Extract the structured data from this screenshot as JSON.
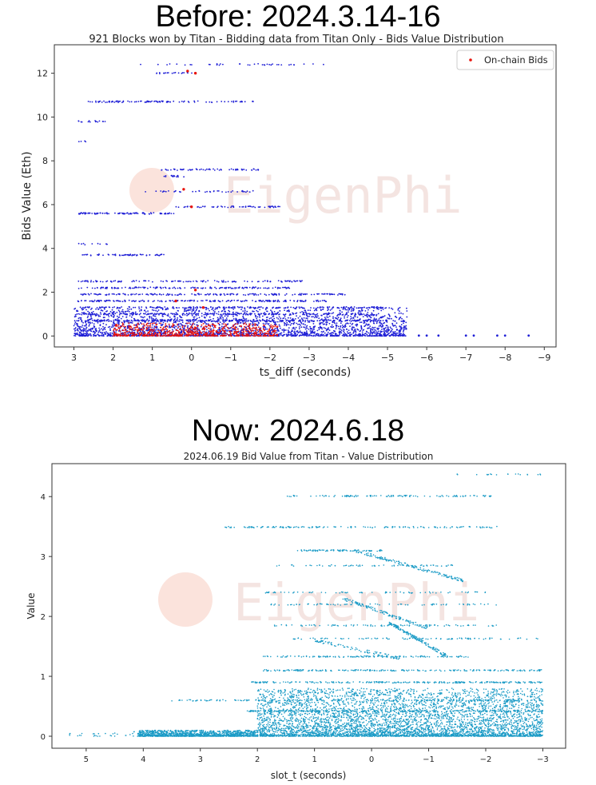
{
  "headers": {
    "before": "Before: 2024.3.14-16",
    "now": "Now: 2024.6.18"
  },
  "watermark": "EigenPhi",
  "chart_data": [
    {
      "type": "scatter",
      "title": "921 Blocks won by Titan - Bidding data from Titan Only - Bids Value Distribution",
      "xlabel": "ts_diff (seconds)",
      "ylabel": "Bids Value (Eth)",
      "xlim": [
        3.5,
        -9.3
      ],
      "ylim": [
        -0.5,
        13.3
      ],
      "x_inverted": true,
      "xticks": [
        3,
        2,
        1,
        0,
        -1,
        -2,
        -3,
        -4,
        -5,
        -6,
        -7,
        -8,
        -9
      ],
      "xtick_labels": [
        "3",
        "2",
        "1",
        "0",
        "−1",
        "−2",
        "−3",
        "−4",
        "−5",
        "−6",
        "−7",
        "−8",
        "−9"
      ],
      "yticks": [
        0,
        2,
        4,
        6,
        8,
        10,
        12
      ],
      "ytick_labels": [
        "0",
        "2",
        "4",
        "6",
        "8",
        "10",
        "12"
      ],
      "grid": false,
      "legend": "top-right",
      "series": [
        {
          "name": "",
          "color": "#1f1fd6",
          "bands": [
            {
              "y": 12.4,
              "x0": 1.4,
              "x1": -3.5,
              "n": 40
            },
            {
              "y": 12.0,
              "x0": 0.9,
              "x1": -0.1,
              "n": 20
            },
            {
              "y": 10.7,
              "x0": 2.7,
              "x1": 0.0,
              "n": 80
            },
            {
              "y": 10.7,
              "x0": 0.0,
              "x1": -1.6,
              "n": 25
            },
            {
              "y": 9.8,
              "x0": 2.9,
              "x1": 2.2,
              "n": 15
            },
            {
              "y": 8.9,
              "x0": 2.9,
              "x1": 2.6,
              "n": 4
            },
            {
              "y": 7.6,
              "x0": 0.8,
              "x1": -1.8,
              "n": 60
            },
            {
              "y": 7.3,
              "x0": 0.7,
              "x1": 0.1,
              "n": 15
            },
            {
              "y": 6.6,
              "x0": 1.2,
              "x1": -1.6,
              "n": 40
            },
            {
              "y": 5.9,
              "x0": 0.4,
              "x1": -2.3,
              "n": 60
            },
            {
              "y": 5.6,
              "x0": 2.9,
              "x1": 0.4,
              "n": 90
            },
            {
              "y": 3.7,
              "x0": 2.8,
              "x1": 0.7,
              "n": 60
            },
            {
              "y": 4.2,
              "x0": 2.9,
              "x1": 2.1,
              "n": 10
            },
            {
              "y": 2.5,
              "x0": 2.9,
              "x1": -3.0,
              "n": 120
            },
            {
              "y": 2.2,
              "x0": 2.9,
              "x1": -2.5,
              "n": 150
            },
            {
              "y": 1.9,
              "x0": 2.9,
              "x1": -4.0,
              "n": 180
            },
            {
              "y": 1.6,
              "x0": 2.9,
              "x1": -3.5,
              "n": 180
            },
            {
              "y": 1.3,
              "x0": 2.9,
              "x1": -5.0,
              "n": 200
            },
            {
              "y": 1.0,
              "x0": 2.9,
              "x1": -4.5,
              "n": 220
            },
            {
              "y": 0.7,
              "x0": 2.9,
              "x1": -5.0,
              "n": 260
            }
          ],
          "cloud": {
            "x0": 3.0,
            "x1": -5.5,
            "y0": 0.0,
            "y1": 1.3,
            "n": 2600
          },
          "outliers": [
            [
              -5.8,
              0.02
            ],
            [
              -6.3,
              0.02
            ],
            [
              -7.0,
              0.02
            ],
            [
              -7.8,
              0.02
            ],
            [
              -8.0,
              0.02
            ],
            [
              -8.6,
              0.02
            ],
            [
              -6.0,
              0.02
            ],
            [
              -7.2,
              0.02
            ]
          ]
        },
        {
          "name": "On-chain Bids",
          "color": "#e8140c",
          "cloud": {
            "x0": 2.0,
            "x1": -2.2,
            "y0": 0.0,
            "y1": 0.6,
            "n": 700
          },
          "points": [
            [
              -0.1,
              12.0
            ],
            [
              0.2,
              6.7
            ],
            [
              -0.1,
              2.1
            ],
            [
              0.4,
              1.6
            ],
            [
              -0.3,
              1.3
            ],
            [
              0.0,
              5.9
            ],
            [
              0.1,
              12.1
            ]
          ]
        }
      ]
    },
    {
      "type": "scatter",
      "title": "2024.06.19 Bid Value from Titan - Value Distribution",
      "xlabel": "slot_t (seconds)",
      "ylabel": "Value",
      "xlim": [
        5.6,
        -3.4
      ],
      "ylim": [
        -0.2,
        4.55
      ],
      "x_inverted": true,
      "xticks": [
        5,
        4,
        3,
        2,
        1,
        0,
        -1,
        -2,
        -3
      ],
      "xtick_labels": [
        "5",
        "4",
        "3",
        "2",
        "1",
        "0",
        "−1",
        "−2",
        "−3"
      ],
      "yticks": [
        0,
        1,
        2,
        3,
        4
      ],
      "ytick_labels": [
        "0",
        "1",
        "2",
        "3",
        "4"
      ],
      "grid": false,
      "legend": "none",
      "series": [
        {
          "name": "",
          "color": "#1b9bc6",
          "bands": [
            {
              "y": 4.37,
              "x0": -1.5,
              "x1": -3.0,
              "n": 20
            },
            {
              "y": 4.01,
              "x0": 1.5,
              "x1": -2.1,
              "n": 110
            },
            {
              "y": 3.49,
              "x0": 2.6,
              "x1": -2.2,
              "n": 150
            },
            {
              "y": 3.1,
              "x0": 1.3,
              "x1": -0.2,
              "n": 90
            },
            {
              "y": 2.85,
              "x0": 1.8,
              "x1": -1.5,
              "n": 60
            },
            {
              "y": 2.4,
              "x0": 1.9,
              "x1": -2.2,
              "n": 70
            },
            {
              "y": 2.2,
              "x0": 1.8,
              "x1": -2.2,
              "n": 80
            },
            {
              "y": 1.85,
              "x0": 1.7,
              "x1": -2.2,
              "n": 90
            },
            {
              "y": 1.63,
              "x0": 1.5,
              "x1": -3.0,
              "n": 90
            },
            {
              "y": 1.33,
              "x0": 1.9,
              "x1": -1.7,
              "n": 140
            },
            {
              "y": 1.1,
              "x0": 1.9,
              "x1": -3.0,
              "n": 220
            },
            {
              "y": 0.9,
              "x0": 2.1,
              "x1": -3.0,
              "n": 260
            },
            {
              "y": 0.6,
              "x0": 3.5,
              "x1": -3.0,
              "n": 200
            },
            {
              "y": 0.42,
              "x0": 2.2,
              "x1": -3.0,
              "n": 260
            }
          ],
          "cloud": {
            "x0": 2.0,
            "x1": -3.0,
            "y0": 0.0,
            "y1": 0.8,
            "n": 4800
          },
          "base": {
            "x0": 4.1,
            "x1": 2.0,
            "y0": 0.0,
            "y1": 0.1,
            "n": 1200
          },
          "sparse": {
            "x0": 5.3,
            "x1": 4.0,
            "y0": 0.0,
            "y1": 0.08,
            "n": 30
          },
          "diagonals": [
            {
              "x0": 0.3,
              "y0": 3.1,
              "x1": -1.6,
              "y1": 2.6,
              "n": 150
            },
            {
              "x0": -0.3,
              "y0": 1.9,
              "x1": -1.3,
              "y1": 1.35,
              "n": 150
            },
            {
              "x0": 0.5,
              "y0": 2.3,
              "x1": -1.0,
              "y1": 1.8,
              "n": 120
            },
            {
              "x0": 1.0,
              "y0": 1.6,
              "x1": -0.5,
              "y1": 1.3,
              "n": 80
            }
          ]
        }
      ]
    }
  ]
}
